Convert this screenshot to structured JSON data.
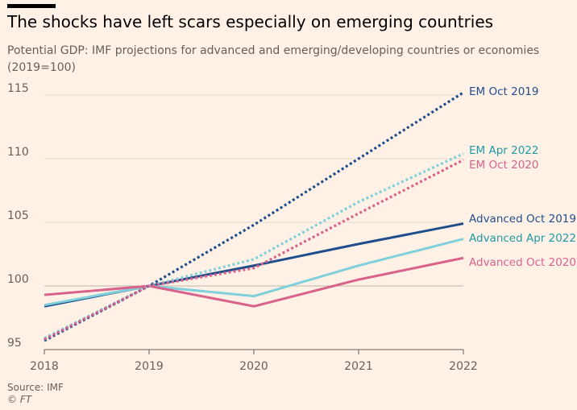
{
  "header": {
    "title": "The shocks have left scars especially on emerging countries",
    "subtitle": "Potential GDP: IMF projections for advanced and emerging/developing countries or economies (2019=100)"
  },
  "footer": {
    "source": "Source: IMF",
    "credit": "© FT"
  },
  "chart_data": {
    "type": "line",
    "title": "The shocks have left scars especially on emerging countries",
    "subtitle": "Potential GDP: IMF projections for advanced and emerging/developing countries or economies (2019=100)",
    "x": [
      2018,
      2019,
      2020,
      2021,
      2022
    ],
    "xlim": [
      2018,
      2022
    ],
    "ylim": [
      95,
      117
    ],
    "yticks": [
      95,
      100,
      105,
      110,
      115
    ],
    "grid": true,
    "legend": "direct labels at line ends",
    "series": [
      {
        "name": "EM Oct 2019",
        "style": "dotted",
        "color": "#1f4e8c",
        "values": [
          95.7,
          100,
          104.8,
          110.0,
          115.2
        ]
      },
      {
        "name": "EM Apr 2022",
        "style": "dotted",
        "color": "#7fd0db",
        "values": [
          95.9,
          100,
          102.1,
          106.6,
          110.4
        ]
      },
      {
        "name": "EM Oct 2020",
        "style": "dotted",
        "color": "#d9628b",
        "values": [
          95.8,
          100,
          101.4,
          105.7,
          109.9
        ]
      },
      {
        "name": "Advanced Oct 2019",
        "style": "solid",
        "color": "#1f4e8c",
        "values": [
          98.4,
          100,
          101.6,
          103.3,
          104.9
        ]
      },
      {
        "name": "Advanced Apr 2022",
        "style": "solid",
        "color": "#7fd0db",
        "values": [
          98.5,
          100,
          99.2,
          101.6,
          103.7
        ]
      },
      {
        "name": "Advanced Oct 2020",
        "style": "solid",
        "color": "#d9628b",
        "values": [
          99.3,
          100,
          98.4,
          100.5,
          102.2
        ]
      }
    ],
    "label_colors": {
      "navy": "#1f4e8c",
      "teal": "#1d9aa8",
      "pink": "#d9628b"
    }
  }
}
